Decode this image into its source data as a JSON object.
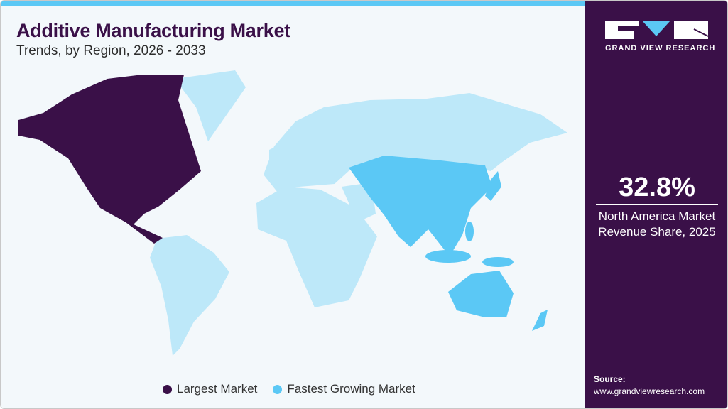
{
  "header": {
    "title": "Additive Manufacturing Market",
    "subtitle": "Trends, by Region, 2026 - 2033"
  },
  "brand": {
    "name": "GRAND VIEW RESEARCH"
  },
  "stat": {
    "value": "32.8%",
    "label_line1": "North America Market",
    "label_line2": "Revenue Share, 2025"
  },
  "source": {
    "label": "Source:",
    "url": "www.grandviewresearch.com"
  },
  "legend": [
    {
      "label": "Largest Market",
      "color": "#3a1048"
    },
    {
      "label": "Fastest Growing Market",
      "color": "#5bc8f5"
    }
  ],
  "map": {
    "largest_market": "North America",
    "fastest_growing_market": "Asia Pacific",
    "colors": {
      "largest": "#3a1048",
      "fastest": "#5bc8f5",
      "other": "#bde8f9"
    }
  }
}
